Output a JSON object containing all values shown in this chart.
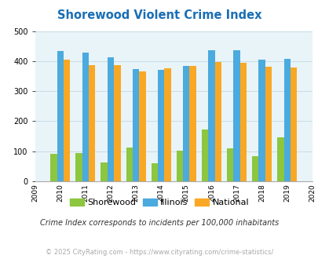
{
  "title": "Shorewood Violent Crime Index",
  "data_years": [
    2010,
    2011,
    2012,
    2013,
    2014,
    2015,
    2016,
    2017,
    2018,
    2019
  ],
  "shorewood": [
    92,
    93,
    62,
    113,
    60,
    103,
    173,
    110,
    83,
    147
  ],
  "illinois": [
    433,
    428,
    413,
    373,
    370,
    383,
    436,
    436,
    405,
    408
  ],
  "national": [
    404,
    387,
    387,
    367,
    376,
    383,
    397,
    394,
    381,
    379
  ],
  "color_shorewood": "#8dc63f",
  "color_illinois": "#4baade",
  "color_national": "#f9a825",
  "ylim": [
    0,
    500
  ],
  "yticks": [
    0,
    100,
    200,
    300,
    400,
    500
  ],
  "bg_color": "#e8f4f8",
  "grid_color": "#c8dce8",
  "title_color": "#1a6eb5",
  "subtitle": "Crime Index corresponds to incidents per 100,000 inhabitants",
  "footer": "© 2025 CityRating.com - https://www.cityrating.com/crime-statistics/",
  "subtitle_color": "#333333",
  "footer_color": "#aaaaaa",
  "bar_width": 0.26
}
